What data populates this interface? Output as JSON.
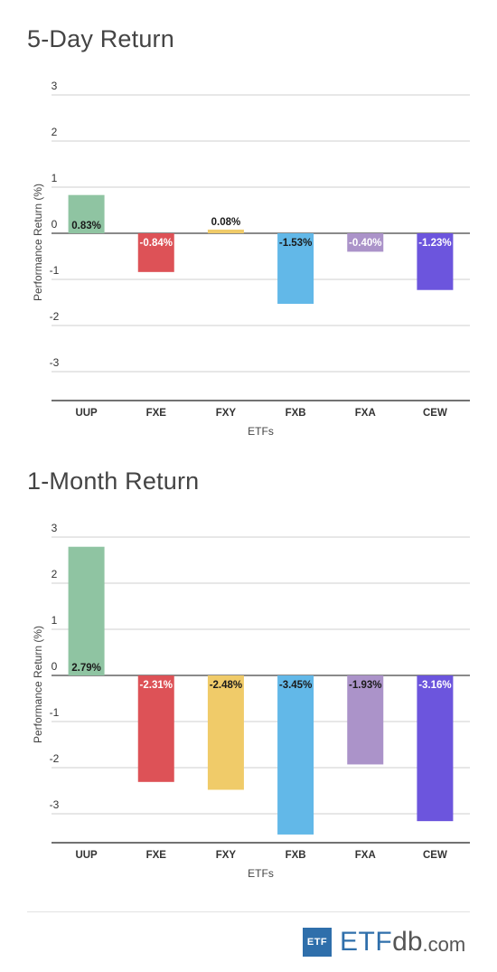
{
  "chart_data": [
    {
      "type": "bar",
      "title": "5-Day Return",
      "xlabel": "ETFs",
      "ylabel": "Performance Return (%)",
      "categories": [
        "UUP",
        "FXE",
        "FXY",
        "FXB",
        "FXA",
        "CEW"
      ],
      "values": [
        0.83,
        -0.84,
        0.08,
        -1.53,
        -0.4,
        -1.23
      ],
      "data_labels": [
        "0.83%",
        "-0.84%",
        "0.08%",
        "-1.53%",
        "-0.40%",
        "-1.23%"
      ],
      "colors": [
        "#8fc4a2",
        "#dd5257",
        "#f0cb69",
        "#62b8e8",
        "#ab93c9",
        "#6c55dd"
      ],
      "yticks": [
        "3",
        "2",
        "1",
        "0",
        "-1",
        "-2",
        "-3"
      ],
      "ylim": [
        -3.65,
        3.15
      ],
      "grid": true
    },
    {
      "type": "bar",
      "title": "1-Month Return",
      "xlabel": "ETFs",
      "ylabel": "Performance Return (%)",
      "categories": [
        "UUP",
        "FXE",
        "FXY",
        "FXB",
        "FXA",
        "CEW"
      ],
      "values": [
        2.79,
        -2.31,
        -2.48,
        -3.45,
        -1.93,
        -3.16
      ],
      "data_labels": [
        "2.79%",
        "-2.31%",
        "-2.48%",
        "-3.45%",
        "-1.93%",
        "-3.16%"
      ],
      "colors": [
        "#8fc4a2",
        "#dd5257",
        "#f0cb69",
        "#62b8e8",
        "#ab93c9",
        "#6c55dd"
      ],
      "yticks": [
        "3",
        "2",
        "1",
        "0",
        "-1",
        "-2",
        "-3"
      ],
      "ylim": [
        -3.65,
        3.15
      ],
      "grid": true
    }
  ],
  "brand": {
    "box_text": "ETF",
    "etf": "ETF",
    "db": "db",
    "com": ".com",
    "color": "#2f6fab"
  }
}
